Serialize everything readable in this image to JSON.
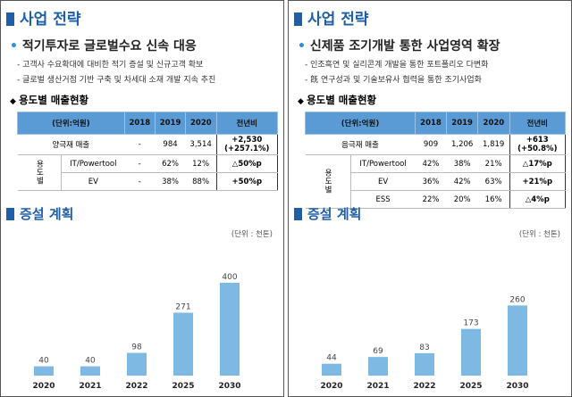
{
  "panels": [
    {
      "title": "사업 전략",
      "subtitle": "적기투자로 글로벌수요 신속 대응",
      "bullets": [
        "- 고객사 수요확대에 대비한 적기 증설 및 신규고객 확보",
        "- 글로벌 생산거점 기반 구축 및 차세대 소재 개발 지속 추진"
      ],
      "table_title": "용도별 매출현황",
      "table": {
        "header": [
          "(단위:억원)",
          "2018",
          "2019",
          "2020",
          "전년비"
        ],
        "rows": [
          [
            "양극재 매출",
            "-",
            "984",
            "3,514",
            "+2,530\n(+257.1%)"
          ]
        ],
        "group_label": "용도별",
        "group_rows": [
          [
            "IT/Powertool",
            "-",
            "62%",
            "12%",
            "△50%p"
          ],
          [
            "EV",
            "-",
            "38%",
            "88%",
            "+50%p"
          ]
        ]
      },
      "chart_title": "증설 계획",
      "unit": "(단위 : 천톤)"
    },
    {
      "title": "사업 전략",
      "subtitle": "신제품 조기개발 통한 사업영역 확장",
      "bullets": [
        "- 인조흑연 및 실리콘계 개발을 통한 포트폴리오 다변화",
        "- 旣 연구성과 및 기술보유사 협력을 통한 조기사업화"
      ],
      "table_title": "용도별 매출현황",
      "table": {
        "header": [
          "(단위:억원)",
          "2018",
          "2019",
          "2020",
          "전년비"
        ],
        "rows": [
          [
            "음극재 매출",
            "909",
            "1,206",
            "1,819",
            "+613\n(+50.8%)"
          ]
        ],
        "group_label": "용도별",
        "group_rows": [
          [
            "IT/Powertool",
            "42%",
            "38%",
            "21%",
            "△17%p"
          ],
          [
            "EV",
            "36%",
            "42%",
            "63%",
            "+21%p"
          ],
          [
            "ESS",
            "22%",
            "20%",
            "16%",
            "△4%p"
          ]
        ]
      },
      "chart_title": "증설 계획",
      "unit": "(단위 : 천톤)"
    }
  ],
  "chart_data": [
    {
      "type": "bar",
      "categories": [
        "2020",
        "2021",
        "2022",
        "2025",
        "2030"
      ],
      "values": [
        40,
        40,
        98,
        271,
        400
      ],
      "color": "#7db9e2",
      "ylim": [
        0,
        500
      ]
    },
    {
      "type": "bar",
      "categories": [
        "2020",
        "2021",
        "2022",
        "2025",
        "2030"
      ],
      "values": [
        44,
        69,
        83,
        173,
        260
      ],
      "color": "#7db9e2",
      "ylim": [
        0,
        430
      ]
    }
  ]
}
